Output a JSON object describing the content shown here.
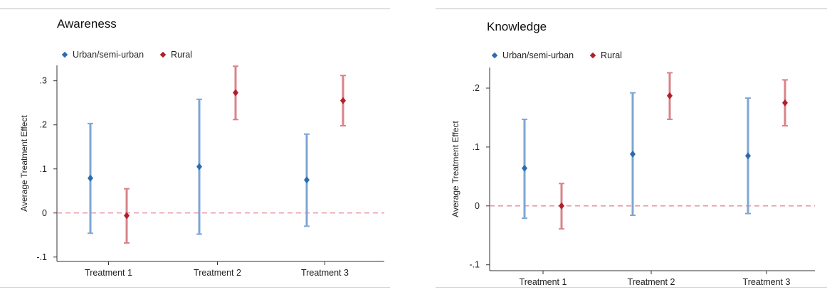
{
  "colors": {
    "urban": "#2b6cb0",
    "urban_bar": "#7ea6d4",
    "rural": "#b0202c",
    "rural_bar": "#d9838a",
    "zero_line": "#e58a96",
    "axis": "#333333"
  },
  "chart_data": [
    {
      "type": "scatter",
      "title": "Awareness",
      "xlabel": "",
      "ylabel": "Average Treatment Effect",
      "categories": [
        "Treatment 1",
        "Treatment 2",
        "Treatment 3"
      ],
      "ylim": [
        -0.11,
        0.335
      ],
      "yticks": [
        -0.1,
        0,
        0.1,
        0.2,
        0.3
      ],
      "ytick_labels": [
        "-.1",
        "0",
        ".1",
        ".2",
        ".3"
      ],
      "reference_line": 0,
      "grid": false,
      "legend_position": "top-left",
      "series": [
        {
          "name": "Urban/semi-urban",
          "color_key": "urban",
          "estimates": [
            0.079,
            0.105,
            0.075
          ],
          "ci_low": [
            -0.046,
            -0.048,
            -0.03
          ],
          "ci_high": [
            0.203,
            0.258,
            0.179
          ]
        },
        {
          "name": "Rural",
          "color_key": "rural",
          "estimates": [
            -0.006,
            0.273,
            0.255
          ],
          "ci_low": [
            -0.068,
            0.212,
            0.198
          ],
          "ci_high": [
            0.055,
            0.333,
            0.312
          ]
        }
      ]
    },
    {
      "type": "scatter",
      "title": "Knowledge",
      "xlabel": "",
      "ylabel": "Average Treatment Effect",
      "categories": [
        "Treatment 1",
        "Treatment 2",
        "Treatment 3"
      ],
      "ylim": [
        -0.11,
        0.235
      ],
      "yticks": [
        -0.1,
        0,
        0.1,
        0.2
      ],
      "ytick_labels": [
        "-.1",
        "0",
        ".1",
        ".2"
      ],
      "reference_line": 0,
      "grid": false,
      "legend_position": "top-left",
      "series": [
        {
          "name": "Urban/semi-urban",
          "color_key": "urban",
          "estimates": [
            0.064,
            0.088,
            0.085
          ],
          "ci_low": [
            -0.021,
            -0.016,
            -0.013
          ],
          "ci_high": [
            0.147,
            0.192,
            0.183
          ]
        },
        {
          "name": "Rural",
          "color_key": "rural",
          "estimates": [
            0.0,
            0.187,
            0.175
          ],
          "ci_low": [
            -0.039,
            0.147,
            0.136
          ],
          "ci_high": [
            0.038,
            0.226,
            0.214
          ]
        }
      ]
    }
  ]
}
